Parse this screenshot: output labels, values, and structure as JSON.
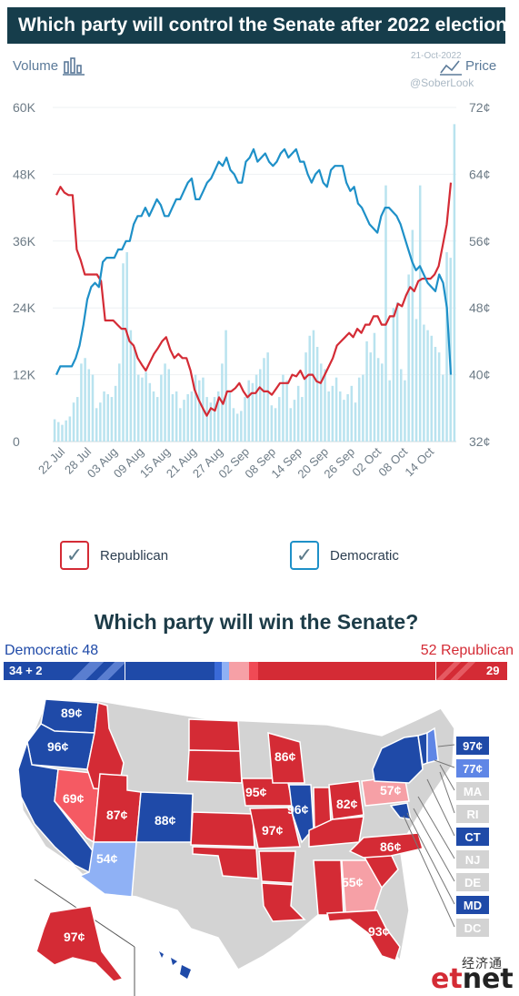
{
  "header": {
    "title": "Which party will control the Senate after 2022 election?"
  },
  "chart_controls": {
    "volume_label": "Volume",
    "price_label": "Price",
    "watermark_date": "21-Oct-2022",
    "watermark_handle": "@SoberLook"
  },
  "chart_data": {
    "type": "line",
    "x_tick_labels": [
      "22 Jul",
      "28 Jul",
      "03 Aug",
      "09 Aug",
      "15 Aug",
      "21 Aug",
      "27 Aug",
      "02 Sep",
      "08 Sep",
      "14 Sep",
      "20 Sep",
      "26 Sep",
      "02 Oct",
      "08 Oct",
      "14 Oct"
    ],
    "volume_axis": {
      "ticks": [
        "0",
        "12K",
        "24K",
        "36K",
        "48K",
        "60K"
      ],
      "ylim": [
        0,
        60000
      ]
    },
    "price_axis": {
      "ticks": [
        "32¢",
        "40¢",
        "48¢",
        "56¢",
        "64¢",
        "72¢"
      ],
      "ylim": [
        32,
        72
      ]
    },
    "series": [
      {
        "name": "Republican",
        "axis": "price",
        "color": "#d42b35",
        "values": [
          61.5,
          62.5,
          61.8,
          61.5,
          61.5,
          55,
          53.7,
          52,
          52,
          52,
          52,
          51.2,
          46.5,
          46.5,
          46.5,
          46,
          45.5,
          45.5,
          44,
          43.5,
          42,
          41.2,
          40.5,
          41.5,
          42.5,
          43.2,
          44,
          44.5,
          43,
          42,
          42.5,
          42,
          42,
          40.5,
          38.2,
          37,
          36,
          35.1,
          36,
          35.7,
          37.3,
          36.5,
          38,
          38,
          38.4,
          39,
          38,
          37.3,
          37.8,
          37.8,
          38.5,
          38,
          38,
          37.6,
          38.3,
          39,
          39,
          39,
          40,
          39.8,
          40.5,
          39.5,
          40,
          40,
          39.2,
          39,
          40,
          41,
          42,
          43.5,
          44,
          44.5,
          45,
          44.5,
          45.5,
          45,
          46,
          46,
          47,
          47,
          46,
          46,
          47,
          47,
          48.5,
          48.2,
          49.5,
          50.5,
          50,
          51.2,
          51.5,
          51.5,
          51.5,
          52,
          53,
          55.5,
          58,
          63
        ]
      },
      {
        "name": "Democratic",
        "axis": "price",
        "color": "#1e90c8",
        "values": [
          40,
          41,
          41,
          41,
          41,
          42,
          43.5,
          46,
          49,
          50.5,
          51,
          50.5,
          53.5,
          54,
          54,
          54,
          55,
          55,
          56,
          56,
          58,
          59,
          59,
          60,
          59,
          60,
          61,
          60.3,
          59,
          59,
          60,
          61,
          61,
          62,
          63,
          63.5,
          61,
          61,
          62,
          63,
          63.5,
          64.5,
          65.5,
          65,
          66,
          64.5,
          64,
          63,
          63,
          65.5,
          66,
          67,
          65.5,
          66,
          66.5,
          65.5,
          65,
          65.5,
          66.5,
          67,
          66,
          66.5,
          67,
          65.5,
          65.5,
          64,
          63,
          64,
          64.5,
          63,
          62.5,
          64.5,
          65,
          65,
          65,
          63,
          62,
          62.5,
          60.5,
          60,
          59,
          58,
          57.5,
          57,
          59,
          60,
          60,
          59.5,
          59,
          58,
          56.5,
          55,
          53.5,
          52.5,
          53,
          52,
          51,
          50.5,
          50,
          52,
          51,
          48,
          40
        ]
      }
    ],
    "volume": [
      4000,
      3500,
      3000,
      3800,
      4500,
      7000,
      8000,
      14000,
      15000,
      13000,
      12000,
      6000,
      7000,
      9000,
      8500,
      8000,
      10000,
      14000,
      32000,
      34000,
      20000,
      17000,
      12000,
      11500,
      12500,
      10500,
      9000,
      8000,
      12000,
      14000,
      13000,
      8500,
      9000,
      6000,
      7500,
      8500,
      9000,
      12000,
      11000,
      11500,
      8000,
      7000,
      8000,
      9000,
      14000,
      20000,
      9000,
      6000,
      5000,
      5500,
      8000,
      11000,
      10500,
      12000,
      13000,
      15000,
      16000,
      6500,
      6000,
      8000,
      12000,
      11000,
      6000,
      7500,
      10000,
      8000,
      16000,
      19000,
      20000,
      17000,
      14000,
      13000,
      9000,
      10000,
      11500,
      9000,
      7500,
      8500,
      10000,
      7000,
      11500,
      12000,
      18000,
      16000,
      19500,
      15000,
      14000,
      46000,
      11000,
      24000,
      25000,
      13000,
      11000,
      30000,
      38000,
      22000,
      46000,
      21000,
      20000,
      19000,
      17000,
      16000,
      12000,
      34000,
      33000,
      57000
    ]
  },
  "legend": {
    "republican_label": "Republican",
    "democratic_label": "Democratic",
    "republican_color": "#d42b35",
    "democratic_color": "#1e90c8"
  },
  "senate": {
    "title": "Which party will win the Senate?",
    "dem_label": "Democratic 48",
    "rep_label": "52 Republican",
    "dem_not_up": "34 + 2",
    "rep_not_up": "29",
    "dem_color": "#1f4aa8",
    "rep_color": "#d42b35"
  },
  "map": {
    "state_labels": [
      "89¢",
      "96¢",
      "69¢",
      "87¢",
      "88¢",
      "54¢",
      "86¢",
      "95¢",
      "97¢",
      "96¢",
      "82¢",
      "57¢",
      "86¢",
      "55¢",
      "93¢",
      "97¢"
    ],
    "northeast": [
      "97¢",
      "77¢",
      "MA",
      "RI",
      "CT",
      "NJ",
      "DE",
      "MD",
      "DC"
    ]
  },
  "logo": {
    "cn": "经济通",
    "en_prefix": "et",
    "en_suffix": "net"
  }
}
